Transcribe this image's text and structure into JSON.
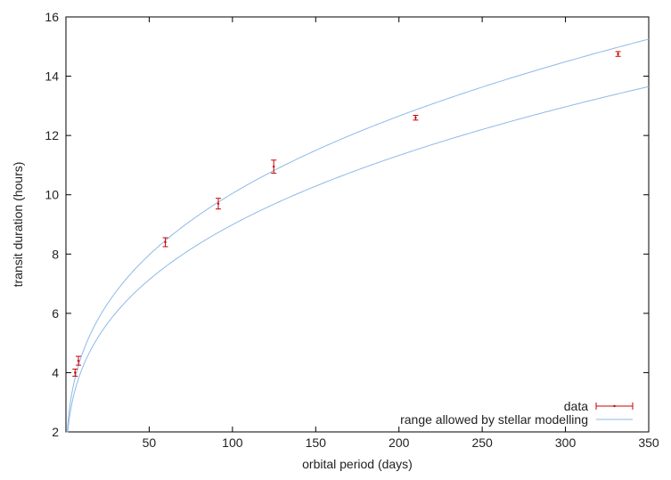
{
  "chart_data": {
    "type": "scatter",
    "title": "",
    "xlabel": "orbital period (days)",
    "ylabel": "transit duration (hours)",
    "xlim": [
      0,
      350
    ],
    "ylim": [
      2,
      16
    ],
    "xticks": [
      50,
      100,
      150,
      200,
      250,
      300,
      350
    ],
    "yticks": [
      2,
      4,
      6,
      8,
      10,
      12,
      14,
      16
    ],
    "grid": false,
    "legend_position": "bottom-right",
    "series": [
      {
        "name": "data",
        "kind": "points-with-error-bars",
        "color": "#cc0000",
        "points": [
          {
            "x": 5.5,
            "y": 4.0,
            "err": 0.12
          },
          {
            "x": 7.5,
            "y": 4.4,
            "err": 0.15
          },
          {
            "x": 59.7,
            "y": 8.4,
            "err": 0.15
          },
          {
            "x": 91.5,
            "y": 9.7,
            "err": 0.18
          },
          {
            "x": 124.8,
            "y": 10.95,
            "err": 0.22
          },
          {
            "x": 210,
            "y": 12.6,
            "err": 0.08
          },
          {
            "x": 331.6,
            "y": 14.75,
            "err": 0.08
          }
        ]
      },
      {
        "name": "range allowed by stellar modelling",
        "kind": "range-curves",
        "color": "#8fb9e8",
        "upper_y_at_xmax": 15.25,
        "lower_y_at_xmax": 13.65,
        "exponent": 0.3333
      }
    ]
  }
}
